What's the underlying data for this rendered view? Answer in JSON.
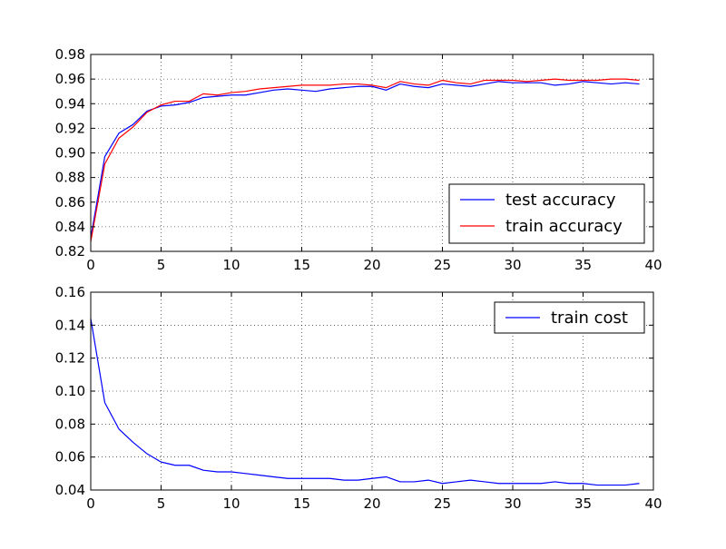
{
  "chart_data": [
    {
      "type": "line",
      "title": "",
      "xlabel": "",
      "ylabel": "",
      "xlim": [
        0,
        40
      ],
      "ylim": [
        0.82,
        0.98
      ],
      "xticks": [
        "0",
        "5",
        "10",
        "15",
        "20",
        "25",
        "30",
        "35",
        "40"
      ],
      "yticks": [
        "0.82",
        "0.84",
        "0.86",
        "0.88",
        "0.90",
        "0.92",
        "0.94",
        "0.96",
        "0.98"
      ],
      "grid": true,
      "legend_position": "lower-right",
      "x": [
        0,
        1,
        2,
        3,
        4,
        5,
        6,
        7,
        8,
        9,
        10,
        11,
        12,
        13,
        14,
        15,
        16,
        17,
        18,
        19,
        20,
        21,
        22,
        23,
        24,
        25,
        26,
        27,
        28,
        29,
        30,
        31,
        32,
        33,
        34,
        35,
        36,
        37,
        38,
        39
      ],
      "series": [
        {
          "name": "test accuracy",
          "color": "#0000ff",
          "values": [
            0.831,
            0.897,
            0.916,
            0.923,
            0.934,
            0.938,
            0.939,
            0.941,
            0.945,
            0.946,
            0.947,
            0.947,
            0.949,
            0.951,
            0.952,
            0.951,
            0.95,
            0.952,
            0.953,
            0.954,
            0.954,
            0.951,
            0.956,
            0.954,
            0.953,
            0.956,
            0.955,
            0.954,
            0.956,
            0.958,
            0.957,
            0.957,
            0.957,
            0.955,
            0.956,
            0.958,
            0.957,
            0.956,
            0.957,
            0.956
          ]
        },
        {
          "name": "train accuracy",
          "color": "#ff0000",
          "values": [
            0.828,
            0.891,
            0.912,
            0.921,
            0.933,
            0.939,
            0.942,
            0.942,
            0.948,
            0.947,
            0.949,
            0.95,
            0.952,
            0.953,
            0.954,
            0.955,
            0.955,
            0.955,
            0.956,
            0.956,
            0.955,
            0.953,
            0.958,
            0.956,
            0.955,
            0.959,
            0.957,
            0.956,
            0.959,
            0.959,
            0.959,
            0.958,
            0.959,
            0.96,
            0.959,
            0.959,
            0.959,
            0.96,
            0.96,
            0.959
          ]
        }
      ]
    },
    {
      "type": "line",
      "title": "",
      "xlabel": "",
      "ylabel": "",
      "xlim": [
        0,
        40
      ],
      "ylim": [
        0.04,
        0.16
      ],
      "xticks": [
        "0",
        "5",
        "10",
        "15",
        "20",
        "25",
        "30",
        "35",
        "40"
      ],
      "yticks": [
        "0.04",
        "0.06",
        "0.08",
        "0.10",
        "0.12",
        "0.14",
        "0.16"
      ],
      "grid": true,
      "legend_position": "upper-right",
      "x": [
        0,
        1,
        2,
        3,
        4,
        5,
        6,
        7,
        8,
        9,
        10,
        11,
        12,
        13,
        14,
        15,
        16,
        17,
        18,
        19,
        20,
        21,
        22,
        23,
        24,
        25,
        26,
        27,
        28,
        29,
        30,
        31,
        32,
        33,
        34,
        35,
        36,
        37,
        38,
        39
      ],
      "series": [
        {
          "name": "train cost",
          "color": "#0000ff",
          "values": [
            0.144,
            0.093,
            0.077,
            0.069,
            0.062,
            0.057,
            0.055,
            0.055,
            0.052,
            0.051,
            0.051,
            0.05,
            0.049,
            0.048,
            0.047,
            0.047,
            0.047,
            0.047,
            0.046,
            0.046,
            0.047,
            0.048,
            0.045,
            0.045,
            0.046,
            0.044,
            0.045,
            0.046,
            0.045,
            0.044,
            0.044,
            0.044,
            0.044,
            0.045,
            0.044,
            0.044,
            0.043,
            0.043,
            0.043,
            0.044
          ]
        }
      ]
    }
  ]
}
